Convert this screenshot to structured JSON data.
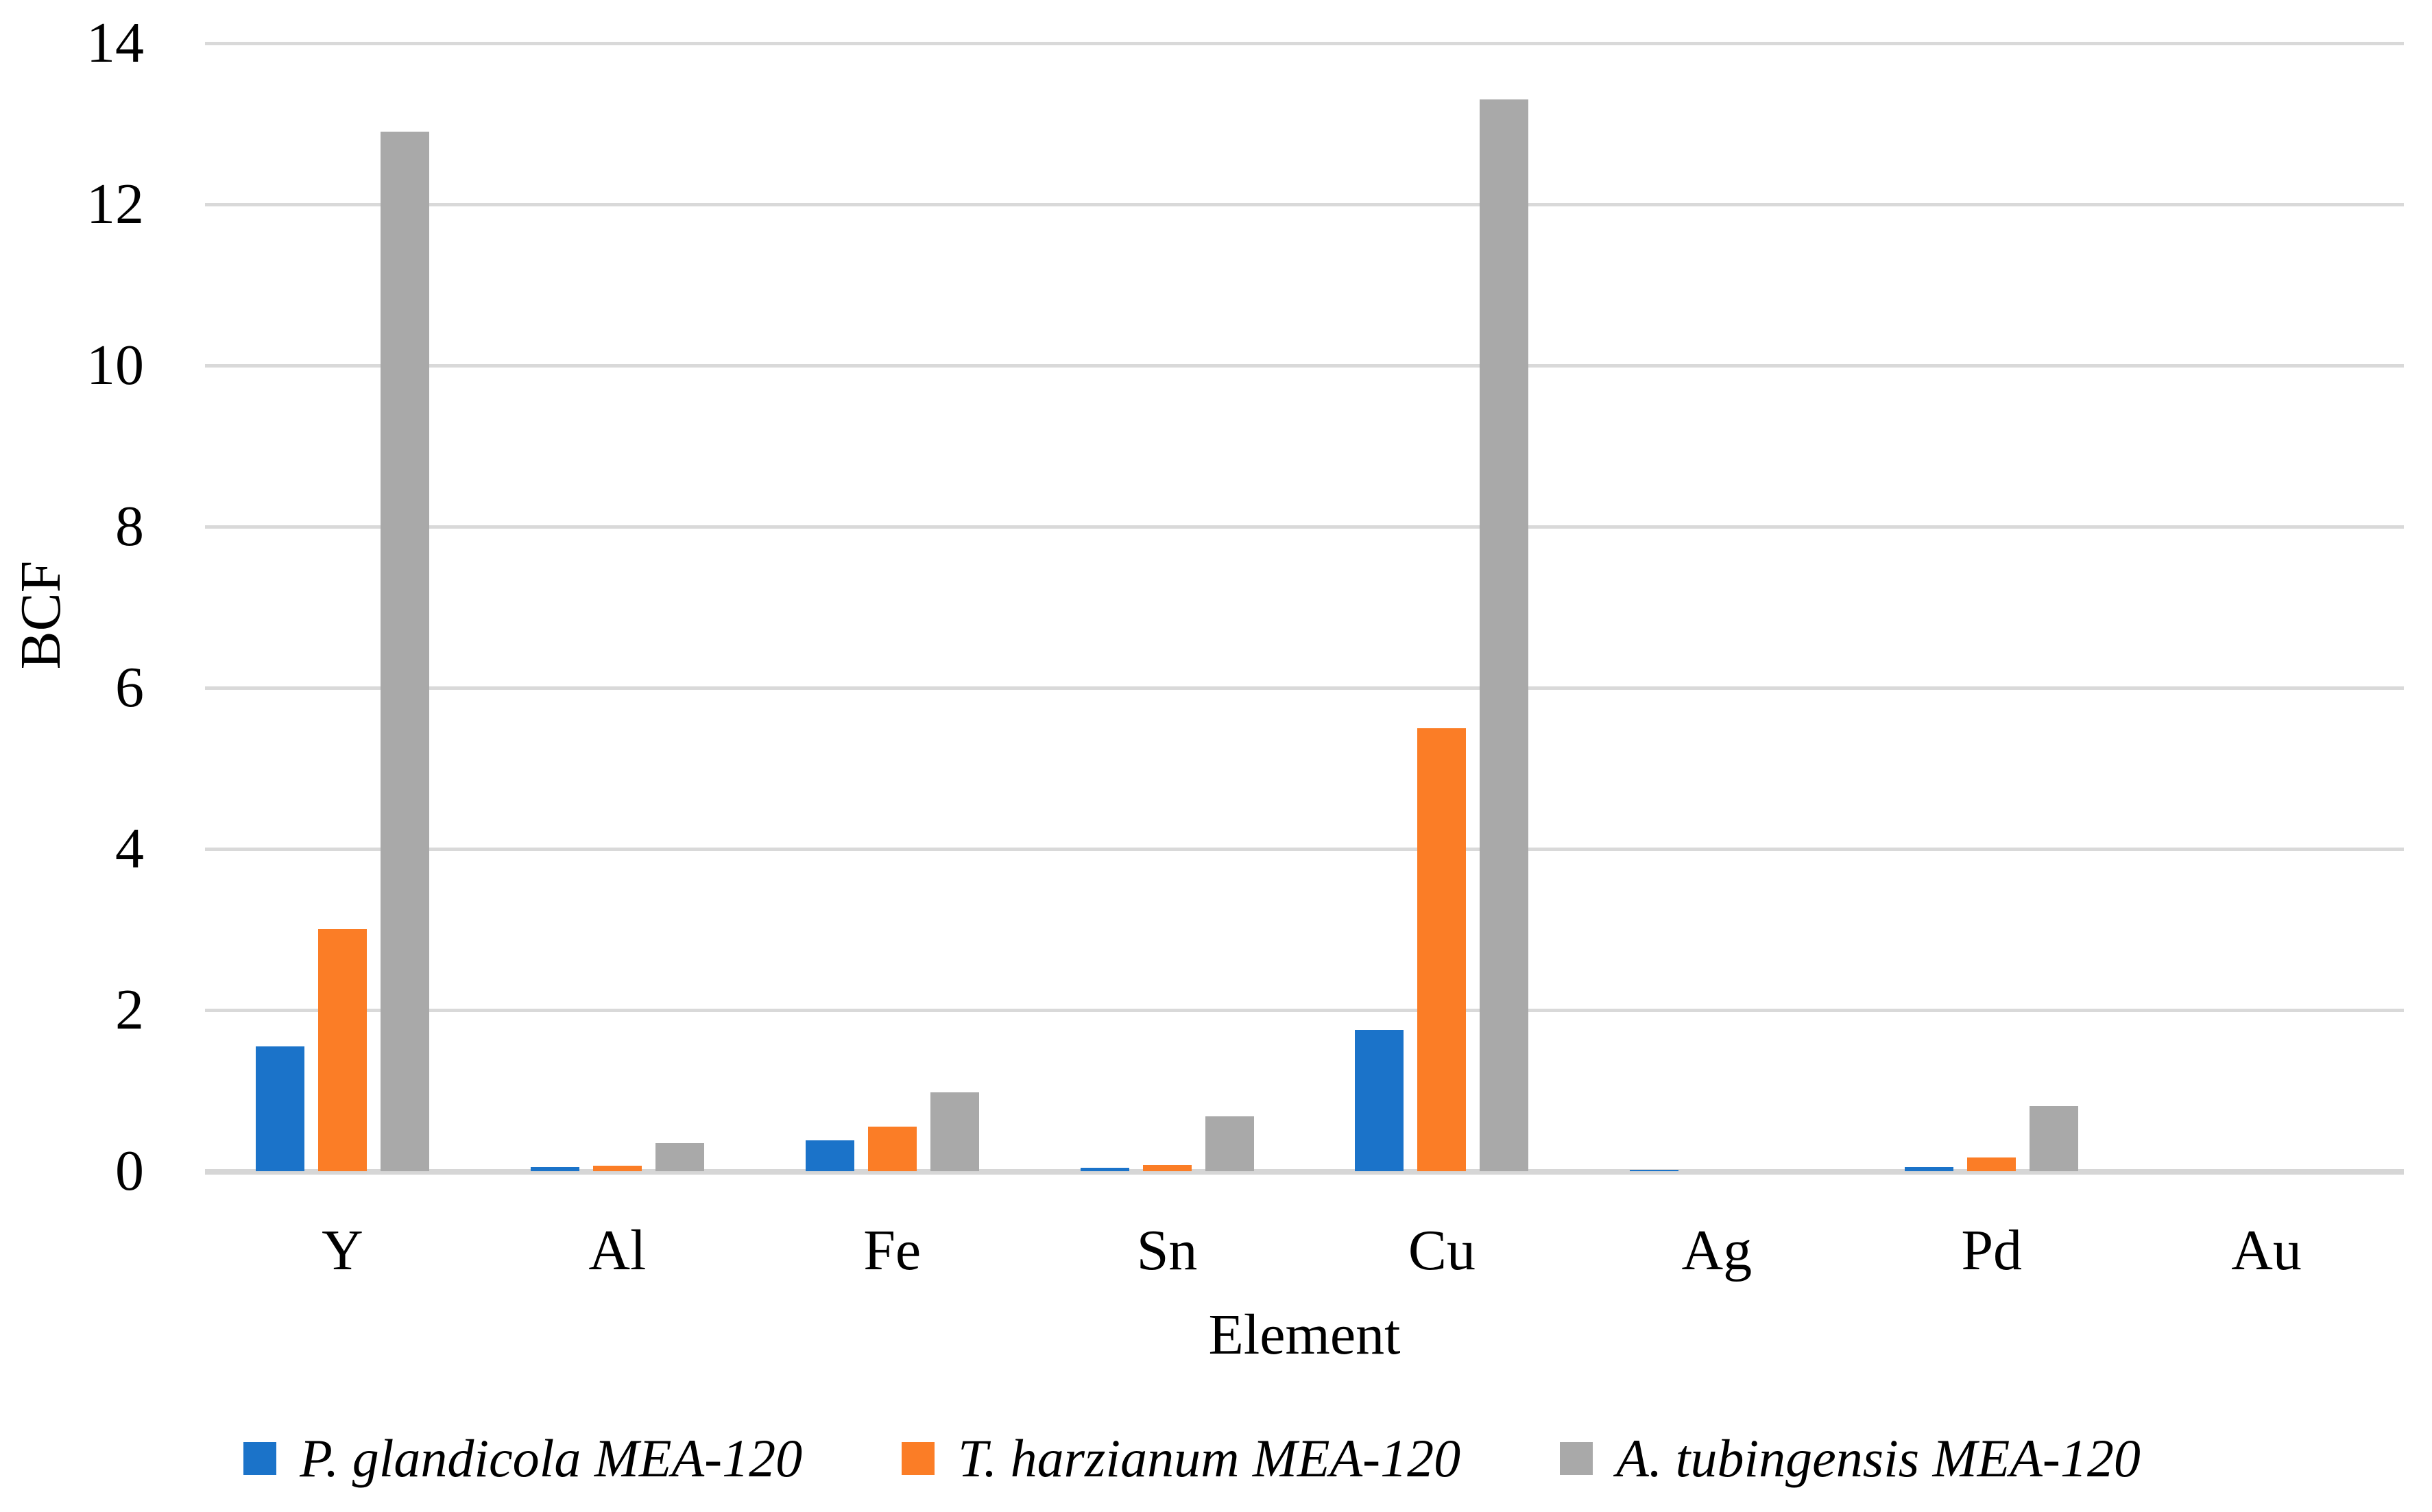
{
  "figure": {
    "xlabel": "Element",
    "ylabel": "BCF"
  },
  "chart_data": {
    "type": "bar",
    "categories": [
      "Y",
      "Al",
      "Fe",
      "Sn",
      "Cu",
      "Ag",
      "Pd",
      "Au"
    ],
    "series": [
      {
        "name": "P. glandicola MEA-120",
        "color": "#1B73C9",
        "values": [
          1.55,
          0.05,
          0.38,
          0.04,
          1.75,
          0.02,
          0.05,
          0
        ]
      },
      {
        "name": "T. harzianum MEA-120",
        "color": "#FB7D26",
        "values": [
          3.0,
          0.07,
          0.55,
          0.08,
          5.5,
          0,
          0.17,
          0
        ]
      },
      {
        "name": "A. tubingensis MEA-120",
        "color": "#A9A9A9",
        "values": [
          12.9,
          0.35,
          0.98,
          0.68,
          13.3,
          0,
          0.81,
          0
        ]
      }
    ],
    "title": "",
    "xlabel": "Element",
    "ylabel": "BCF",
    "ylim": [
      0,
      14
    ],
    "yticks": [
      0,
      2,
      4,
      6,
      8,
      10,
      12,
      14
    ],
    "grid": true,
    "legend_position": "bottom",
    "gridline_color": "#D9D9D9",
    "axis_line_color": "#D6D6D6",
    "background_color": "#FFFFFF",
    "text_color": "#000000"
  }
}
